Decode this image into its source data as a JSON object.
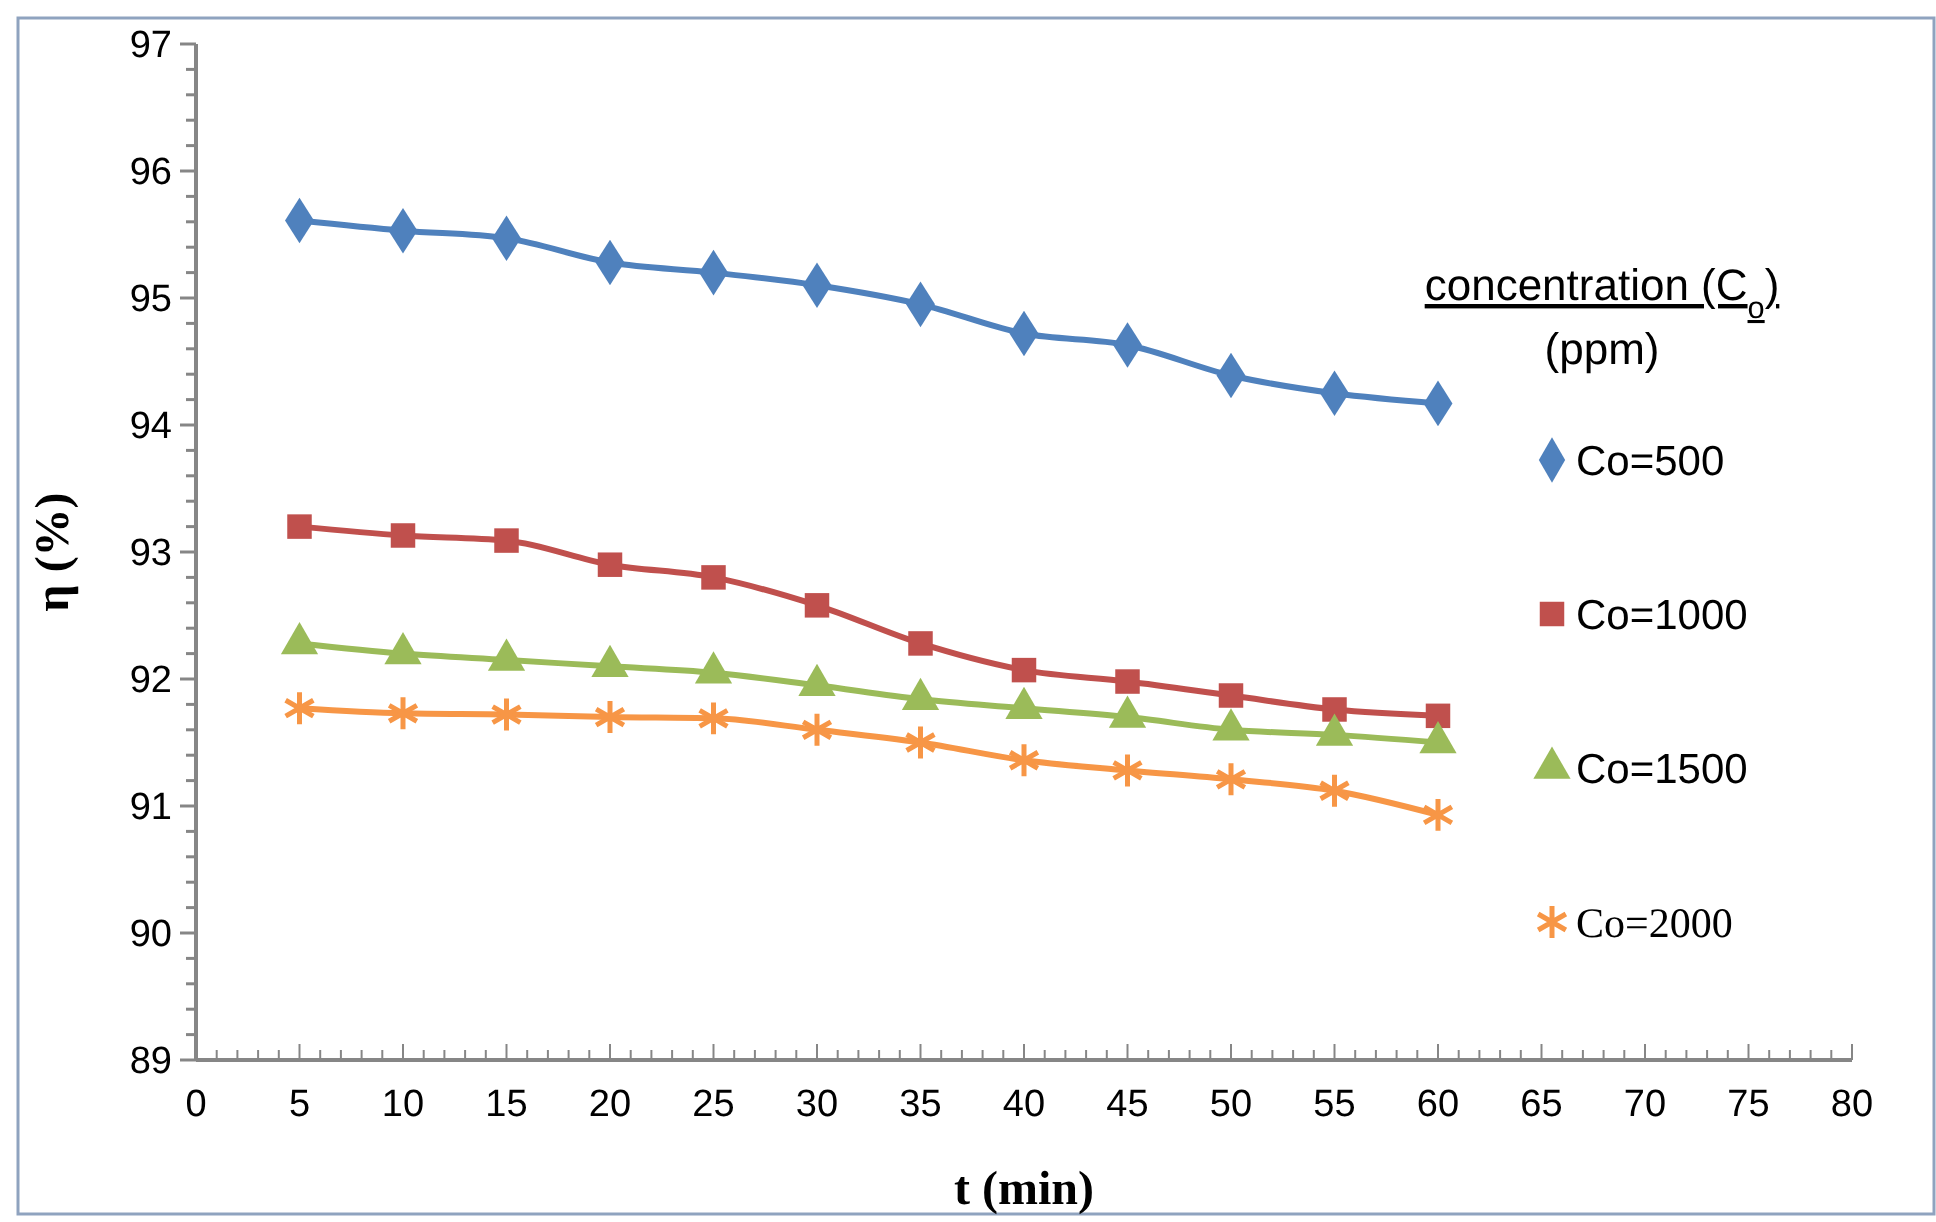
{
  "chart_data": {
    "type": "line",
    "xlabel": "t (min)",
    "ylabel": "η (%)",
    "legend_title": "concentration (C$_{o}$)\n(ppm)",
    "legend": "right",
    "grid": false,
    "line_style": "solid",
    "x": [
      5,
      10,
      15,
      20,
      25,
      30,
      35,
      40,
      45,
      50,
      55,
      60
    ],
    "xlim": [
      0,
      80
    ],
    "ylim": [
      89,
      97
    ],
    "xticks": [
      0,
      {
        "value": 1,
        "label": null
      },
      {
        "value": 2,
        "label": null
      },
      {
        "value": 3,
        "label": null
      },
      {
        "value": 4,
        "label": null
      },
      5,
      {
        "value": 6,
        "label": null
      },
      {
        "value": 7,
        "label": null
      },
      {
        "value": 8,
        "label": null
      },
      {
        "value": 9,
        "label": null
      },
      10,
      {
        "value": 11,
        "label": null
      },
      {
        "value": 12,
        "label": null
      },
      {
        "value": 13,
        "label": null
      },
      {
        "value": 14,
        "label": null
      },
      15,
      {
        "value": 16,
        "label": null
      },
      {
        "value": 17,
        "label": null
      },
      {
        "value": 18,
        "label": null
      },
      {
        "value": 19,
        "label": null
      },
      20,
      {
        "value": 21,
        "label": null
      },
      {
        "value": 22,
        "label": null
      },
      {
        "value": 23,
        "label": null
      },
      {
        "value": 24,
        "label": null
      },
      25,
      {
        "value": 26,
        "label": null
      },
      {
        "value": 27,
        "label": null
      },
      {
        "value": 28,
        "label": null
      },
      {
        "value": 29,
        "label": null
      },
      30,
      {
        "value": 31,
        "label": null
      },
      {
        "value": 32,
        "label": null
      },
      {
        "value": 33,
        "label": null
      },
      {
        "value": 34,
        "label": null
      },
      35,
      {
        "value": 36,
        "label": null
      },
      {
        "value": 37,
        "label": null
      },
      {
        "value": 38,
        "label": null
      },
      {
        "value": 39,
        "label": null
      },
      40,
      {
        "value": 41,
        "label": null
      },
      {
        "value": 42,
        "label": null
      },
      {
        "value": 43,
        "label": null
      },
      {
        "value": 44,
        "label": null
      },
      45,
      {
        "value": 46,
        "label": null
      },
      {
        "value": 47,
        "label": null
      },
      {
        "value": 48,
        "label": null
      },
      {
        "value": 49,
        "label": null
      },
      50,
      {
        "value": 51,
        "label": null
      },
      {
        "value": 52,
        "label": null
      },
      {
        "value": 53,
        "label": null
      },
      {
        "value": 54,
        "label": null
      },
      55,
      {
        "value": 56,
        "label": null
      },
      {
        "value": 57,
        "label": null
      },
      {
        "value": 58,
        "label": null
      },
      {
        "value": 59,
        "label": null
      },
      60,
      {
        "value": 61,
        "label": null
      },
      {
        "value": 62,
        "label": null
      },
      {
        "value": 63,
        "label": null
      },
      {
        "value": 64,
        "label": null
      },
      65,
      {
        "value": 66,
        "label": null
      },
      {
        "value": 67,
        "label": null
      },
      {
        "value": 68,
        "label": null
      },
      {
        "value": 69,
        "label": null
      },
      70,
      {
        "value": 71,
        "label": null
      },
      {
        "value": 72,
        "label": null
      },
      {
        "value": 73,
        "label": null
      },
      {
        "value": 74,
        "label": null
      },
      75,
      {
        "value": 76,
        "label": null
      },
      {
        "value": 77,
        "label": null
      },
      {
        "value": 78,
        "label": null
      },
      {
        "value": 79,
        "label": null
      },
      80
    ],
    "yticks": [
      89,
      {
        "value": 89.2,
        "label": null
      },
      {
        "value": 89.4,
        "label": null
      },
      {
        "value": 89.6,
        "label": null
      },
      {
        "value": 89.8,
        "label": null
      },
      90,
      {
        "value": 90.2,
        "label": null
      },
      {
        "value": 90.4,
        "label": null
      },
      {
        "value": 90.6,
        "label": null
      },
      {
        "value": 90.8,
        "label": null
      },
      91,
      {
        "value": 91.2,
        "label": null
      },
      {
        "value": 91.4,
        "label": null
      },
      {
        "value": 91.6,
        "label": null
      },
      {
        "value": 91.8,
        "label": null
      },
      92,
      {
        "value": 92.2,
        "label": null
      },
      {
        "value": 92.4,
        "label": null
      },
      {
        "value": 92.6,
        "label": null
      },
      {
        "value": 92.8,
        "label": null
      },
      93,
      {
        "value": 93.2,
        "label": null
      },
      {
        "value": 93.4,
        "label": null
      },
      {
        "value": 93.6,
        "label": null
      },
      {
        "value": 93.8,
        "label": null
      },
      94,
      {
        "value": 94.2,
        "label": null
      },
      {
        "value": 94.4,
        "label": null
      },
      {
        "value": 94.6,
        "label": null
      },
      {
        "value": 94.8,
        "label": null
      },
      95,
      {
        "value": 95.2,
        "label": null
      },
      {
        "value": 95.4,
        "label": null
      },
      {
        "value": 95.6,
        "label": null
      },
      {
        "value": 95.8,
        "label": null
      },
      96,
      {
        "value": 96.2,
        "label": null
      },
      {
        "value": 96.4,
        "label": null
      },
      {
        "value": 96.6,
        "label": null
      },
      {
        "value": 96.8,
        "label": null
      },
      97
    ],
    "series": [
      {
        "name": "Co=500",
        "color": "#4f81bd",
        "marker": "diamond",
        "values": [
          95.61,
          95.53,
          95.47,
          95.28,
          95.2,
          95.1,
          94.95,
          94.72,
          94.63,
          94.39,
          94.25,
          94.17
        ]
      },
      {
        "name": "Co=1000",
        "color": "#c0504d",
        "marker": "square",
        "values": [
          93.2,
          93.13,
          93.09,
          92.9,
          92.8,
          92.58,
          92.28,
          92.07,
          91.98,
          91.87,
          91.76,
          91.71
        ]
      },
      {
        "name": "Co=1500",
        "color": "#9bbb59",
        "marker": "triangle",
        "values": [
          92.28,
          92.2,
          92.15,
          92.1,
          92.05,
          91.95,
          91.84,
          91.77,
          91.7,
          91.6,
          91.56,
          91.5
        ]
      },
      {
        "name": "Co=2000",
        "color": "#f79646",
        "marker": "cross",
        "values": [
          91.77,
          91.73,
          91.72,
          91.7,
          91.69,
          91.6,
          91.5,
          91.36,
          91.28,
          91.21,
          91.12,
          90.93
        ]
      }
    ]
  }
}
